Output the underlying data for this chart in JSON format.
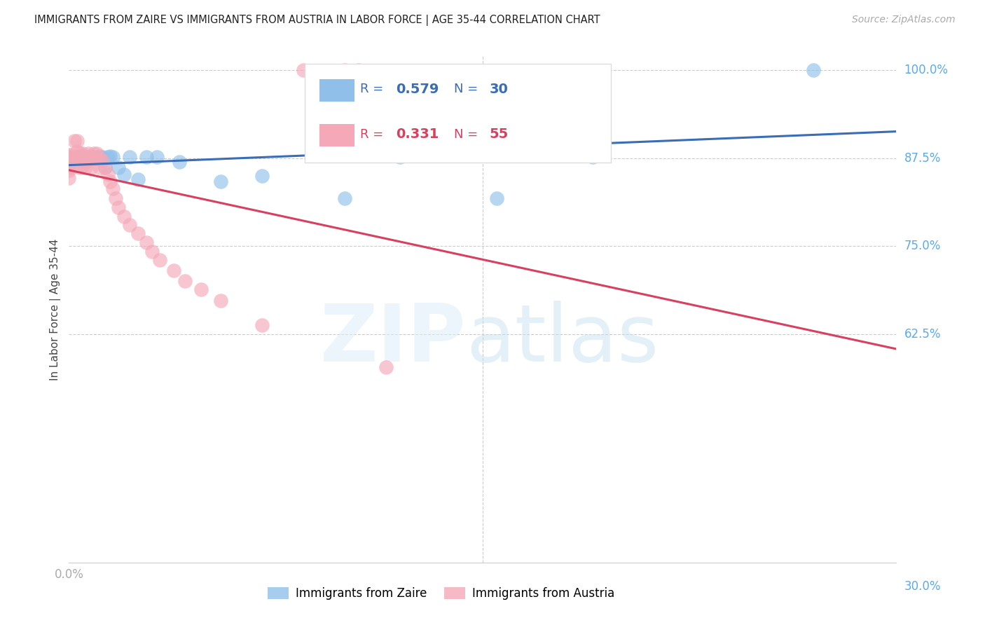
{
  "title": "IMMIGRANTS FROM ZAIRE VS IMMIGRANTS FROM AUSTRIA IN LABOR FORCE | AGE 35-44 CORRELATION CHART",
  "source": "Source: ZipAtlas.com",
  "ylabel": "In Labor Force | Age 35-44",
  "xlim": [
    0.0,
    0.3
  ],
  "ylim": [
    0.3,
    1.02
  ],
  "zaire_R": 0.579,
  "zaire_N": 30,
  "austria_R": 0.331,
  "austria_N": 55,
  "zaire_color": "#90c0ea",
  "austria_color": "#f4a8b8",
  "zaire_line_color": "#3a6db5",
  "austria_line_color": "#d84060",
  "grid_color": "#cccccc",
  "ytick_color": "#5aabea",
  "xtick_color": "#aaaaaa",
  "zaire_x": [
    0.0,
    0.001,
    0.003,
    0.004,
    0.005,
    0.006,
    0.007,
    0.008,
    0.009,
    0.01,
    0.011,
    0.012,
    0.013,
    0.014,
    0.015,
    0.016,
    0.018,
    0.02,
    0.022,
    0.025,
    0.028,
    0.032,
    0.04,
    0.055,
    0.07,
    0.1,
    0.12,
    0.155,
    0.19,
    0.27
  ],
  "zaire_y": [
    0.876,
    0.876,
    0.877,
    0.878,
    0.878,
    0.877,
    0.876,
    0.877,
    0.877,
    0.876,
    0.878,
    0.877,
    0.862,
    0.877,
    0.878,
    0.877,
    0.862,
    0.852,
    0.877,
    0.845,
    0.877,
    0.877,
    0.87,
    0.842,
    0.85,
    0.818,
    0.877,
    0.818,
    0.877,
    1.0
  ],
  "austria_x": [
    0.0,
    0.0,
    0.0,
    0.0,
    0.0,
    0.0,
    0.001,
    0.001,
    0.001,
    0.002,
    0.002,
    0.003,
    0.003,
    0.003,
    0.004,
    0.004,
    0.004,
    0.005,
    0.005,
    0.005,
    0.006,
    0.006,
    0.006,
    0.007,
    0.007,
    0.008,
    0.008,
    0.009,
    0.009,
    0.01,
    0.01,
    0.011,
    0.011,
    0.012,
    0.013,
    0.014,
    0.015,
    0.016,
    0.017,
    0.018,
    0.02,
    0.022,
    0.025,
    0.028,
    0.03,
    0.033,
    0.038,
    0.042,
    0.048,
    0.055,
    0.07,
    0.085,
    0.1,
    0.105,
    0.115
  ],
  "austria_y": [
    0.88,
    0.877,
    0.872,
    0.865,
    0.858,
    0.847,
    0.88,
    0.875,
    0.862,
    0.9,
    0.875,
    0.9,
    0.885,
    0.875,
    0.882,
    0.875,
    0.862,
    0.882,
    0.875,
    0.865,
    0.875,
    0.87,
    0.862,
    0.882,
    0.872,
    0.878,
    0.862,
    0.882,
    0.875,
    0.882,
    0.875,
    0.875,
    0.862,
    0.872,
    0.862,
    0.852,
    0.842,
    0.832,
    0.818,
    0.805,
    0.792,
    0.78,
    0.768,
    0.755,
    0.742,
    0.73,
    0.715,
    0.7,
    0.688,
    0.672,
    0.638,
    1.0,
    1.0,
    1.0,
    0.578
  ]
}
